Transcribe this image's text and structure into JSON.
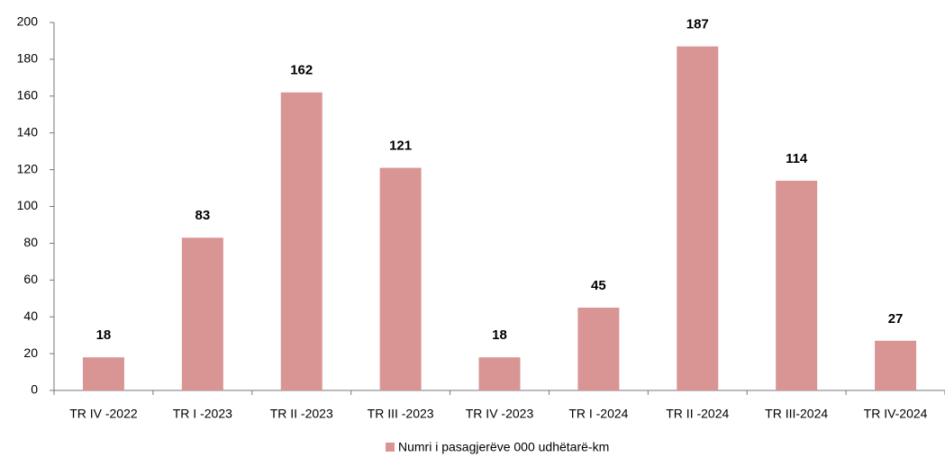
{
  "chart_data": {
    "type": "bar",
    "categories": [
      "TR IV -2022",
      "TR I -2023",
      "TR II -2023",
      "TR III -2023",
      "TR IV -2023",
      "TR I -2024",
      "TR II -2024",
      "TR III-2024",
      "TR IV-2024"
    ],
    "series": [
      {
        "name": "Numri i pasagjerëve 000 udhëtarë-km",
        "color": "#d99594",
        "values": [
          18,
          83,
          162,
          121,
          18,
          45,
          187,
          114,
          27
        ]
      }
    ],
    "ylim": [
      0,
      200
    ],
    "yticks": [
      0,
      20,
      40,
      60,
      80,
      100,
      120,
      140,
      160,
      180,
      200
    ],
    "grid": false,
    "legend": "bottom"
  }
}
